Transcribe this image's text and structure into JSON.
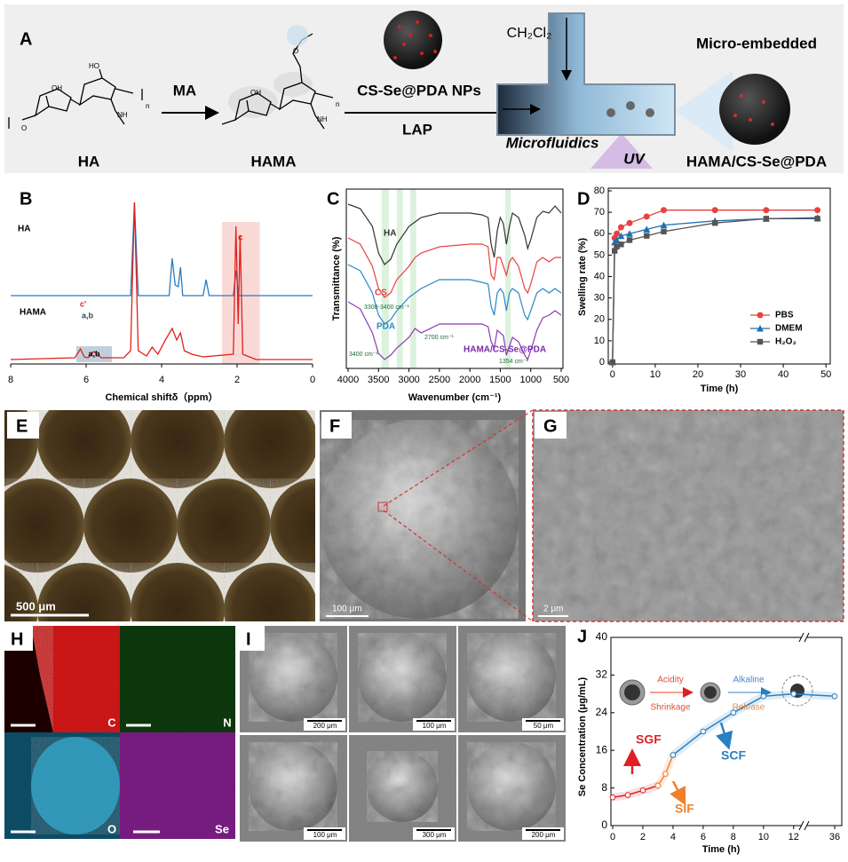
{
  "panel_a": {
    "label": "A",
    "ma": "MA",
    "nps": "CS-Se@PDA NPs",
    "lap": "LAP",
    "solvent": "CH₂Cl₂",
    "micro_embedded": "Micro-embedded",
    "ha": "HA",
    "hama": "HAMA",
    "microfluidics": "Microfluidics",
    "uv": "UV",
    "product": "HAMA/CS-Se@PDA",
    "ha_atoms": [
      "OH",
      "HO",
      "O",
      "NH",
      "n"
    ],
    "hama_atoms": [
      "O",
      "OH",
      "NH",
      "n"
    ]
  },
  "chart_data": [
    {
      "type": "spectrum",
      "label": "B",
      "xlabel": "Chemical shiftδ（ppm）",
      "xlim": [
        8,
        0
      ],
      "xticks": [
        8,
        6,
        4,
        2,
        0
      ],
      "highlight": [
        2.4,
        1.4
      ],
      "annotations": [
        "c",
        "c'",
        "a,b",
        "a,b"
      ],
      "series": [
        {
          "name": "HA",
          "color": "#2a7bc0",
          "x": [
            8,
            6.5,
            6.2,
            4.82,
            4.72,
            4.62,
            3.8,
            3.72,
            3.64,
            3.56,
            3.5,
            3.44,
            2.9,
            2.82,
            2.74,
            2.1,
            2.03,
            1.96,
            0
          ],
          "values": [
            0,
            0,
            0,
            0,
            105,
            0,
            0,
            42,
            12,
            10,
            32,
            0,
            0,
            18,
            0,
            0,
            28,
            0,
            0
          ]
        },
        {
          "name": "HAMA",
          "color": "#e0201c",
          "x": [
            8,
            6.3,
            6.15,
            6.05,
            5.95,
            5.8,
            5.7,
            5.6,
            5.0,
            4.82,
            4.72,
            4.62,
            4.4,
            4.25,
            4.1,
            3.9,
            3.72,
            3.6,
            3.5,
            3.4,
            3.2,
            2.9,
            2.1,
            2.03,
            1.97,
            1.92,
            1.85,
            1.5,
            0
          ],
          "values": [
            0,
            2,
            12,
            3,
            2,
            9,
            6,
            2,
            2,
            10,
            177,
            10,
            4,
            14,
            6,
            22,
            35,
            22,
            30,
            10,
            6,
            3,
            6,
            150,
            40,
            140,
            6,
            0,
            0
          ]
        }
      ]
    },
    {
      "type": "spectrum",
      "label": "C",
      "xlabel": "Wavenumber (cm⁻¹)",
      "ylabel": "Transmittance (%)",
      "xlim": [
        4000,
        500
      ],
      "xticks": [
        4000,
        3500,
        3000,
        2500,
        2000,
        1500,
        1000,
        500
      ],
      "bands": [
        [
          3450,
          3330
        ],
        [
          3200,
          3100
        ],
        [
          2980,
          2880
        ],
        [
          1420,
          1330
        ]
      ],
      "annotations": [
        "3300-3400 cm⁻¹",
        "2700 cm⁻¹",
        "3400 cm⁻¹",
        "1354 cm⁻¹"
      ],
      "x": [
        4000,
        3800,
        3600,
        3500,
        3400,
        3300,
        3200,
        3000,
        2900,
        2800,
        2500,
        2000,
        1800,
        1700,
        1650,
        1600,
        1550,
        1500,
        1450,
        1400,
        1350,
        1300,
        1200,
        1100,
        1050,
        1000,
        900,
        800,
        700,
        600,
        500
      ],
      "series": [
        {
          "name": "HA",
          "color": "#333333",
          "values": [
            185,
            180,
            160,
            130,
            117,
            123,
            140,
            160,
            165,
            170,
            175,
            175,
            173,
            170,
            140,
            125,
            155,
            170,
            163,
            140,
            160,
            175,
            170,
            150,
            135,
            145,
            170,
            177,
            175,
            183,
            175
          ]
        },
        {
          "name": "CS",
          "color": "#e8423f",
          "values": [
            147,
            140,
            115,
            90,
            80,
            85,
            100,
            115,
            125,
            130,
            137,
            140,
            140,
            137,
            105,
            100,
            125,
            125,
            115,
            105,
            120,
            125,
            115,
            90,
            85,
            95,
            120,
            125,
            120,
            125,
            125
          ]
        },
        {
          "name": "PDA",
          "color": "#2a88c8",
          "values": [
            117,
            110,
            85,
            60,
            50,
            55,
            65,
            80,
            85,
            90,
            100,
            100,
            97,
            95,
            70,
            60,
            85,
            90,
            85,
            65,
            85,
            90,
            85,
            60,
            55,
            65,
            85,
            90,
            85,
            90,
            85
          ]
        },
        {
          "name": "HAMA/CS-Se@PDA",
          "color": "#8a3ab8",
          "values": [
            75,
            67,
            40,
            17,
            10,
            15,
            23,
            35,
            45,
            40,
            50,
            50,
            50,
            47,
            30,
            23,
            43,
            40,
            37,
            15,
            25,
            35,
            30,
            15,
            10,
            20,
            43,
            57,
            60,
            65,
            60
          ]
        }
      ]
    },
    {
      "type": "line",
      "label": "D",
      "xlabel": "Time (h)",
      "ylabel": "Swelling rate (%)",
      "xlim": [
        -1,
        51
      ],
      "ylim": [
        0,
        80
      ],
      "xticks": [
        0,
        10,
        20,
        30,
        40,
        50
      ],
      "yticks": [
        0,
        10,
        20,
        30,
        40,
        50,
        60,
        70,
        80
      ],
      "legend": "lower right",
      "x": [
        0,
        0.5,
        1,
        2,
        4,
        8,
        12,
        24,
        36,
        48
      ],
      "series": [
        {
          "name": "PBS",
          "color": "#e8423f",
          "marker": "circle",
          "values": [
            0,
            58,
            60,
            63,
            65,
            68,
            71,
            71,
            71,
            71
          ]
        },
        {
          "name": "DMEM",
          "color": "#1f6fb2",
          "marker": "triangle",
          "values": [
            0,
            56,
            57,
            59,
            60,
            62,
            64,
            66,
            67,
            67.5
          ]
        },
        {
          "name": "H₂O₂",
          "color": "#555555",
          "marker": "square",
          "values": [
            0,
            52,
            54,
            55,
            57,
            59,
            61,
            65,
            67,
            67
          ]
        }
      ]
    },
    {
      "type": "line",
      "label": "J",
      "xlabel": "Time (h)",
      "ylabel": "Se Concentration (μg/mL)",
      "xlim": [
        0,
        36.5
      ],
      "xbreak": [
        12.6,
        34
      ],
      "ylim": [
        0,
        40
      ],
      "xticks": [
        0,
        2,
        4,
        6,
        8,
        10,
        12,
        36
      ],
      "yticks": [
        0,
        8,
        16,
        24,
        32,
        40
      ],
      "inset": [
        "Acidity",
        "Shrinkage",
        "Alkaline",
        "Release"
      ],
      "series": [
        {
          "name": "SGF",
          "color": "#e01f25",
          "x": [
            0,
            1,
            2,
            3
          ],
          "values": [
            6,
            6.5,
            7.5,
            8.5
          ]
        },
        {
          "name": "SIF",
          "color": "#f0802a",
          "x": [
            3,
            3.5,
            4
          ],
          "values": [
            8.5,
            11,
            15
          ]
        },
        {
          "name": "SCF",
          "color": "#2a7fc0",
          "x": [
            4,
            6,
            8,
            10,
            12,
            36
          ],
          "values": [
            15,
            20,
            24,
            27.5,
            28,
            27.5
          ]
        }
      ]
    }
  ],
  "panel_e": {
    "label": "E",
    "scale": "500 μm"
  },
  "panel_f": {
    "label": "F",
    "scale": "100 μm"
  },
  "panel_g": {
    "label": "G",
    "scale": "2 μm"
  },
  "panel_h": {
    "label": "H",
    "elements": [
      "C",
      "N",
      "O",
      "Se"
    ]
  },
  "panel_i": {
    "label": "I",
    "scales": [
      "200 μm",
      "100 μm",
      "50 μm",
      "100 μm",
      "300 μm",
      "200 μm"
    ]
  }
}
